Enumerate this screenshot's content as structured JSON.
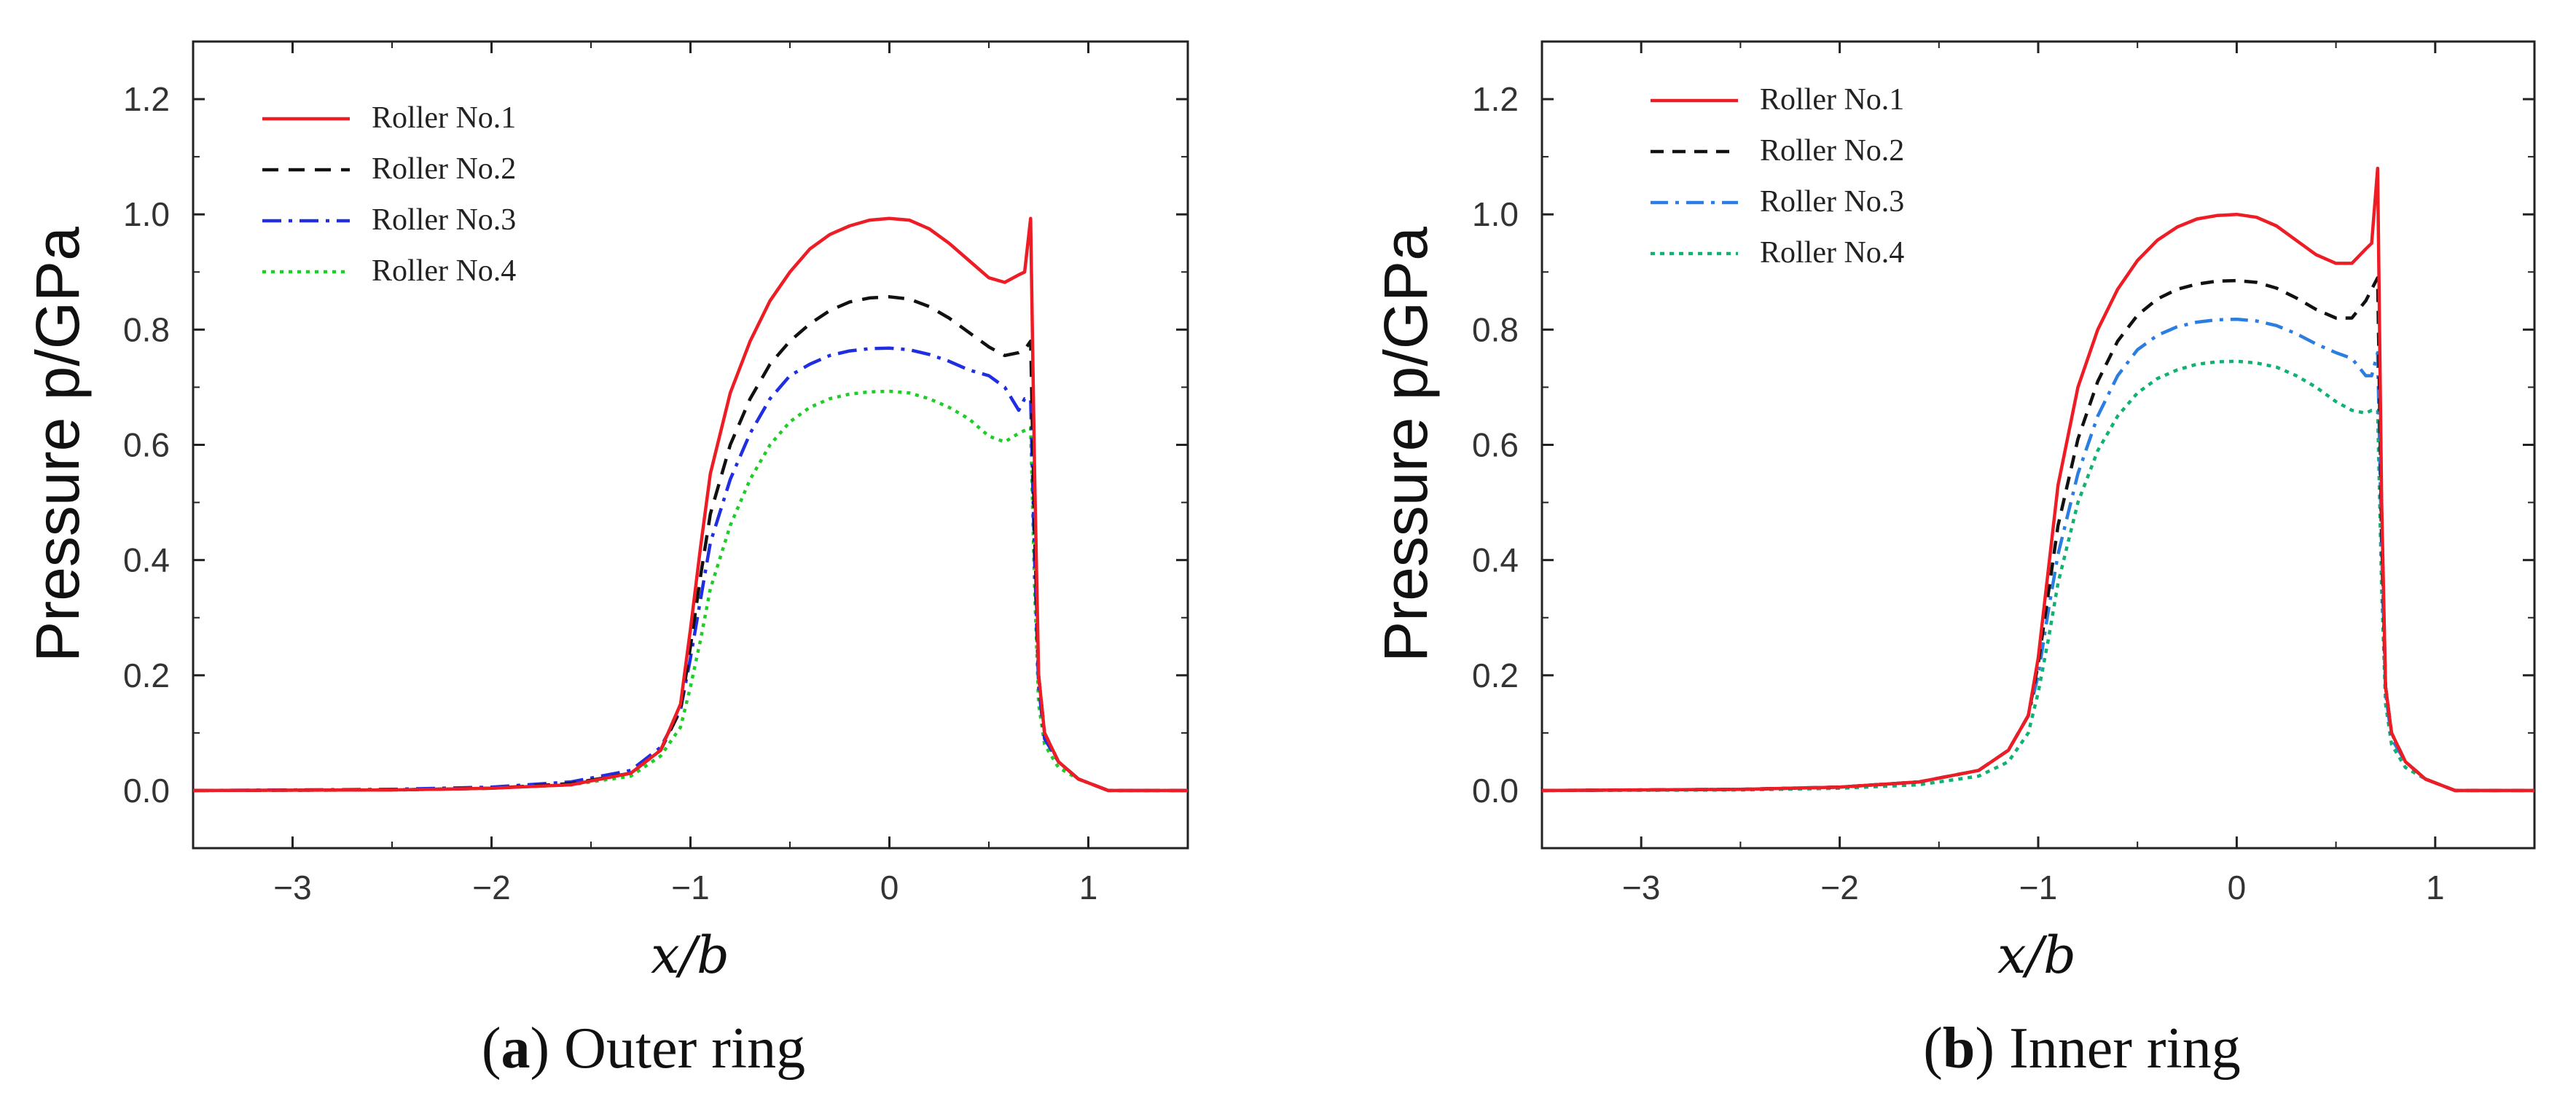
{
  "chart_data": [
    {
      "type": "line",
      "panel_label": "a",
      "caption": "Outer ring",
      "xlabel": "x/b",
      "ylabel": "Pressure p/GPa",
      "xlim": [
        -3.5,
        1.5
      ],
      "ylim": [
        -0.1,
        1.3
      ],
      "xticks": [
        -3,
        -2,
        -1,
        0,
        1
      ],
      "xtick_labels": [
        "−3",
        "−2",
        "−1",
        "0",
        "1"
      ],
      "yticks": [
        0.0,
        0.2,
        0.4,
        0.6,
        0.8,
        1.0,
        1.2
      ],
      "ytick_labels": [
        "0.0",
        "0.2",
        "0.4",
        "0.6",
        "0.8",
        "1.0",
        "1.2"
      ],
      "legend_position": "top-left",
      "series": [
        {
          "name": "Roller No.1",
          "color": "#ee1c25",
          "dash": "solid",
          "x": [
            -3.5,
            -2.5,
            -2.0,
            -1.6,
            -1.3,
            -1.15,
            -1.05,
            -1.0,
            -0.95,
            -0.9,
            -0.8,
            -0.7,
            -0.6,
            -0.5,
            -0.4,
            -0.3,
            -0.2,
            -0.1,
            0.0,
            0.1,
            0.2,
            0.3,
            0.4,
            0.5,
            0.58,
            0.65,
            0.68,
            0.71,
            0.73,
            0.75,
            0.78,
            0.85,
            0.95,
            1.1,
            1.5
          ],
          "y": [
            0.0,
            0.001,
            0.004,
            0.01,
            0.03,
            0.07,
            0.15,
            0.28,
            0.42,
            0.55,
            0.69,
            0.78,
            0.85,
            0.9,
            0.94,
            0.965,
            0.98,
            0.99,
            0.993,
            0.99,
            0.975,
            0.95,
            0.92,
            0.89,
            0.882,
            0.895,
            0.9,
            0.993,
            0.55,
            0.2,
            0.1,
            0.05,
            0.02,
            0.0,
            0.0
          ]
        },
        {
          "name": "Roller No.2",
          "color": "#111111",
          "dash": "22 14",
          "x": [
            -3.5,
            -2.5,
            -2.0,
            -1.6,
            -1.3,
            -1.15,
            -1.05,
            -1.0,
            -0.95,
            -0.9,
            -0.8,
            -0.7,
            -0.6,
            -0.5,
            -0.4,
            -0.3,
            -0.2,
            -0.1,
            0.0,
            0.1,
            0.2,
            0.3,
            0.4,
            0.5,
            0.58,
            0.65,
            0.68,
            0.71,
            0.73,
            0.75,
            0.78,
            0.85,
            0.95,
            1.1,
            1.5
          ],
          "y": [
            0.0,
            0.001,
            0.004,
            0.012,
            0.03,
            0.07,
            0.14,
            0.25,
            0.37,
            0.48,
            0.6,
            0.68,
            0.74,
            0.78,
            0.81,
            0.833,
            0.848,
            0.855,
            0.857,
            0.853,
            0.84,
            0.82,
            0.795,
            0.77,
            0.755,
            0.76,
            0.765,
            0.78,
            0.45,
            0.2,
            0.1,
            0.05,
            0.02,
            0.0,
            0.0
          ]
        },
        {
          "name": "Roller No.3",
          "color": "#1f2ee0",
          "dash": "26 10 5 10",
          "x": [
            -3.5,
            -2.5,
            -2.0,
            -1.6,
            -1.3,
            -1.15,
            -1.05,
            -1.0,
            -0.95,
            -0.9,
            -0.8,
            -0.7,
            -0.6,
            -0.5,
            -0.4,
            -0.3,
            -0.2,
            -0.1,
            0.0,
            0.1,
            0.2,
            0.3,
            0.4,
            0.5,
            0.58,
            0.65,
            0.68,
            0.71,
            0.73,
            0.75,
            0.78,
            0.85,
            0.95,
            1.1,
            1.5
          ],
          "y": [
            0.0,
            0.002,
            0.006,
            0.015,
            0.035,
            0.075,
            0.14,
            0.23,
            0.33,
            0.43,
            0.54,
            0.62,
            0.68,
            0.72,
            0.74,
            0.755,
            0.763,
            0.767,
            0.768,
            0.765,
            0.757,
            0.745,
            0.73,
            0.72,
            0.7,
            0.66,
            0.68,
            0.68,
            0.4,
            0.18,
            0.09,
            0.05,
            0.02,
            0.0,
            0.0
          ]
        },
        {
          "name": "Roller No.4",
          "color": "#1ecd28",
          "dash": "5 7",
          "x": [
            -3.5,
            -2.5,
            -2.0,
            -1.6,
            -1.3,
            -1.15,
            -1.05,
            -1.0,
            -0.95,
            -0.9,
            -0.8,
            -0.7,
            -0.6,
            -0.5,
            -0.4,
            -0.3,
            -0.2,
            -0.1,
            0.0,
            0.1,
            0.2,
            0.3,
            0.4,
            0.5,
            0.58,
            0.65,
            0.68,
            0.71,
            0.73,
            0.75,
            0.78,
            0.85,
            0.95,
            1.1,
            1.5
          ],
          "y": [
            0.0,
            0.001,
            0.004,
            0.01,
            0.025,
            0.06,
            0.11,
            0.18,
            0.26,
            0.35,
            0.46,
            0.54,
            0.6,
            0.64,
            0.665,
            0.68,
            0.688,
            0.692,
            0.693,
            0.69,
            0.68,
            0.665,
            0.645,
            0.615,
            0.605,
            0.62,
            0.625,
            0.63,
            0.35,
            0.15,
            0.08,
            0.04,
            0.02,
            0.0,
            0.0
          ]
        }
      ]
    },
    {
      "type": "line",
      "panel_label": "b",
      "caption": "Inner ring",
      "xlabel": "x/b",
      "ylabel": "Pressure p/GPa",
      "xlim": [
        -3.5,
        1.5
      ],
      "ylim": [
        -0.1,
        1.3
      ],
      "xticks": [
        -3,
        -2,
        -1,
        0,
        1
      ],
      "xtick_labels": [
        "−3",
        "−2",
        "−1",
        "0",
        "1"
      ],
      "yticks": [
        0.0,
        0.2,
        0.4,
        0.6,
        0.8,
        1.0,
        1.2
      ],
      "ytick_labels": [
        "0.0",
        "0.2",
        "0.4",
        "0.6",
        "0.8",
        "1.0",
        "1.2"
      ],
      "legend_position": "top-left",
      "series": [
        {
          "name": "Roller No.1",
          "color": "#ee1c25",
          "dash": "solid",
          "x": [
            -3.5,
            -2.5,
            -2.0,
            -1.6,
            -1.3,
            -1.15,
            -1.05,
            -1.0,
            -0.95,
            -0.9,
            -0.8,
            -0.7,
            -0.6,
            -0.5,
            -0.4,
            -0.3,
            -0.2,
            -0.1,
            0.0,
            0.1,
            0.2,
            0.3,
            0.4,
            0.5,
            0.58,
            0.65,
            0.68,
            0.71,
            0.73,
            0.75,
            0.78,
            0.85,
            0.95,
            1.1,
            1.5
          ],
          "y": [
            0.0,
            0.002,
            0.006,
            0.015,
            0.035,
            0.07,
            0.13,
            0.23,
            0.38,
            0.53,
            0.7,
            0.8,
            0.87,
            0.92,
            0.955,
            0.978,
            0.992,
            0.998,
            1.0,
            0.995,
            0.98,
            0.955,
            0.93,
            0.915,
            0.915,
            0.94,
            0.95,
            1.08,
            0.5,
            0.18,
            0.1,
            0.05,
            0.02,
            0.0,
            0.0
          ]
        },
        {
          "name": "Roller No.2",
          "color": "#111111",
          "dash": "18 12",
          "x": [
            -3.5,
            -2.5,
            -2.0,
            -1.6,
            -1.3,
            -1.15,
            -1.05,
            -1.0,
            -0.95,
            -0.9,
            -0.8,
            -0.7,
            -0.6,
            -0.5,
            -0.4,
            -0.3,
            -0.2,
            -0.1,
            0.0,
            0.1,
            0.2,
            0.3,
            0.4,
            0.5,
            0.58,
            0.65,
            0.68,
            0.71,
            0.73,
            0.75,
            0.78,
            0.85,
            0.95,
            1.1,
            1.5
          ],
          "y": [
            0.0,
            0.002,
            0.006,
            0.015,
            0.035,
            0.07,
            0.13,
            0.22,
            0.34,
            0.46,
            0.61,
            0.71,
            0.78,
            0.825,
            0.853,
            0.87,
            0.879,
            0.884,
            0.885,
            0.882,
            0.872,
            0.855,
            0.835,
            0.82,
            0.82,
            0.85,
            0.87,
            0.89,
            0.45,
            0.18,
            0.1,
            0.05,
            0.02,
            0.0,
            0.0
          ]
        },
        {
          "name": "Roller No.3",
          "color": "#2a7de1",
          "dash": "24 10 5 10",
          "x": [
            -3.5,
            -2.5,
            -2.0,
            -1.6,
            -1.3,
            -1.15,
            -1.05,
            -1.0,
            -0.95,
            -0.9,
            -0.8,
            -0.7,
            -0.6,
            -0.5,
            -0.4,
            -0.3,
            -0.2,
            -0.1,
            0.0,
            0.1,
            0.2,
            0.3,
            0.4,
            0.5,
            0.58,
            0.65,
            0.68,
            0.71,
            0.73,
            0.75,
            0.78,
            0.85,
            0.95,
            1.1,
            1.5
          ],
          "y": [
            0.0,
            0.002,
            0.006,
            0.015,
            0.035,
            0.07,
            0.13,
            0.2,
            0.31,
            0.41,
            0.55,
            0.65,
            0.72,
            0.765,
            0.79,
            0.805,
            0.813,
            0.817,
            0.818,
            0.815,
            0.807,
            0.793,
            0.775,
            0.76,
            0.75,
            0.72,
            0.72,
            0.76,
            0.42,
            0.17,
            0.09,
            0.05,
            0.02,
            0.0,
            0.0
          ]
        },
        {
          "name": "Roller No.4",
          "color": "#10b272",
          "dash": "6 7",
          "x": [
            -3.5,
            -2.5,
            -2.0,
            -1.6,
            -1.3,
            -1.15,
            -1.05,
            -1.0,
            -0.95,
            -0.9,
            -0.8,
            -0.7,
            -0.6,
            -0.5,
            -0.4,
            -0.3,
            -0.2,
            -0.1,
            0.0,
            0.1,
            0.2,
            0.3,
            0.4,
            0.5,
            0.58,
            0.65,
            0.68,
            0.71,
            0.73,
            0.75,
            0.78,
            0.85,
            0.95,
            1.1,
            1.5
          ],
          "y": [
            0.0,
            0.001,
            0.004,
            0.01,
            0.025,
            0.05,
            0.1,
            0.17,
            0.26,
            0.36,
            0.5,
            0.59,
            0.65,
            0.69,
            0.715,
            0.73,
            0.74,
            0.744,
            0.745,
            0.742,
            0.735,
            0.72,
            0.7,
            0.675,
            0.66,
            0.655,
            0.66,
            0.66,
            0.35,
            0.15,
            0.08,
            0.04,
            0.02,
            0.0,
            0.0
          ]
        }
      ]
    }
  ]
}
